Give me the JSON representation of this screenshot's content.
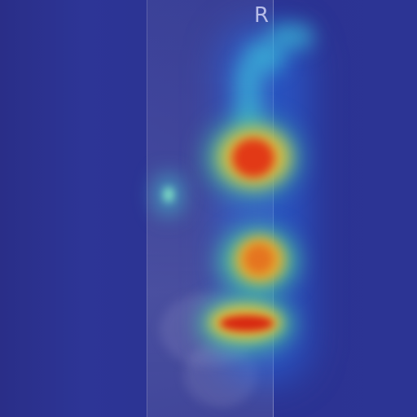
{
  "image": {
    "orientation_marker": "R"
  },
  "colors": {
    "background": "#2b3190",
    "hot": "#e02a10",
    "warm": "#f0b030",
    "mid": "#58d890",
    "cool": "#3fc8e0",
    "marker": "#b8bde8"
  }
}
